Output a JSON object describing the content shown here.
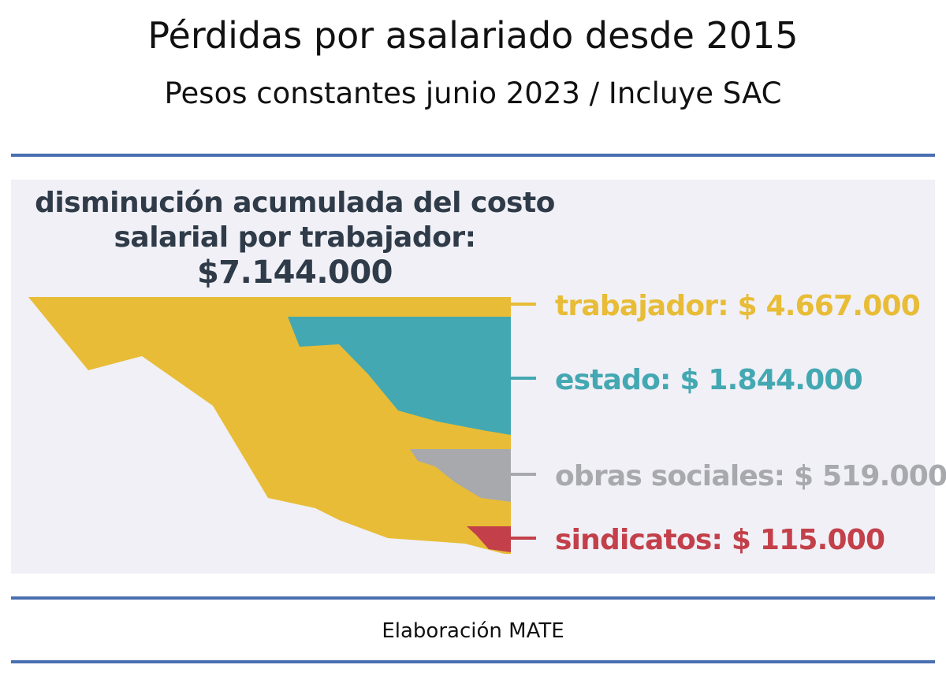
{
  "title": "Pérdidas por asalariado desde 2015",
  "subtitle": "Pesos constantes junio 2023 / Incluye SAC",
  "credit": "Elaboración MATE",
  "colors": {
    "rule": "#4a6fb0",
    "panel": "#f0f0f6",
    "headline": "#2f3b48"
  },
  "chart_data": {
    "type": "area",
    "title": "disminución acumulada del costo salarial por trabajador:",
    "total": "$7.144.000",
    "series": [
      {
        "name": "trabajador",
        "label": "trabajador: $ 4.667.000",
        "value": 4667000,
        "color": "#e8bc36"
      },
      {
        "name": "estado",
        "label": "estado: $ 1.844.000",
        "value": 1844000,
        "color": "#43a8b2"
      },
      {
        "name": "obras sociales",
        "label": "obras sociales: $ 519.000",
        "value": 519000,
        "color": "#a7a9ad"
      },
      {
        "name": "sindicatos",
        "label": "sindicatos: $ 115.000",
        "value": 115000,
        "color": "#c3404a"
      }
    ]
  }
}
